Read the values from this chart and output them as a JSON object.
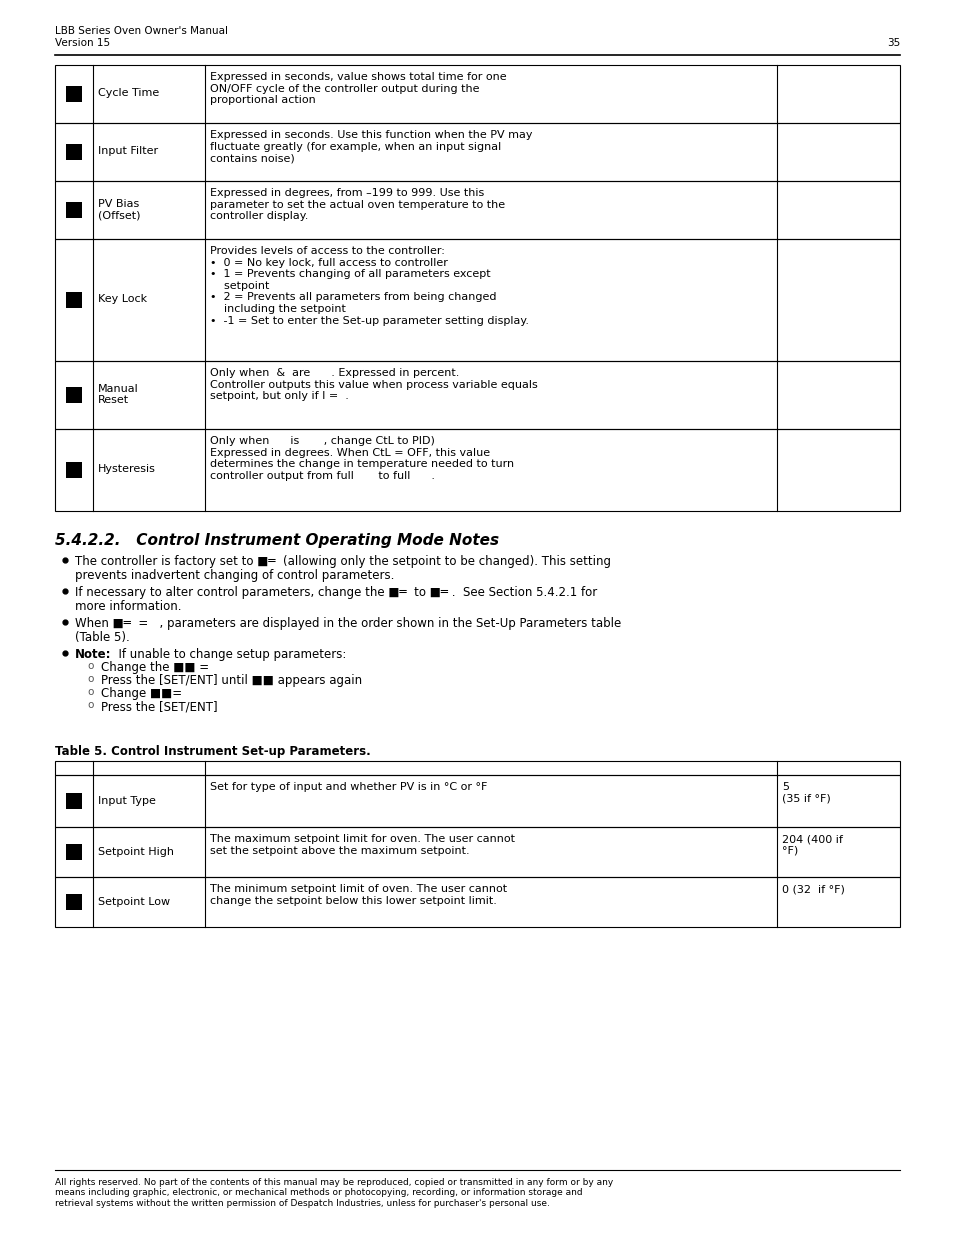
{
  "page_header_line1": "LBB Series Oven Owner's Manual",
  "page_header_line2": "Version 15",
  "page_number": "35",
  "top_table_rows": [
    {
      "label": "Cycle Time",
      "description": "Expressed in seconds, value shows total time for one\nON/OFF cycle of the controller output during the\nproportional action",
      "value": ""
    },
    {
      "label": "Input Filter",
      "description": "Expressed in seconds. Use this function when the PV may\nfluctuate greatly (for example, when an input signal\ncontains noise)",
      "value": ""
    },
    {
      "label": "PV Bias\n(Offset)",
      "description": "Expressed in degrees, from –199 to 999. Use this\nparameter to set the actual oven temperature to the\ncontroller display.",
      "value": ""
    },
    {
      "label": "Key Lock",
      "description": "Provides levels of access to the controller:\n•  0 = No key lock, full access to controller\n•  1 = Prevents changing of all parameters except\n    setpoint\n•  2 = Prevents all parameters from being changed\n    including the setpoint\n•  -1 = Set to enter the Set-up parameter setting display.",
      "value": ""
    },
    {
      "label": "Manual\nReset",
      "description": "Only when  &  are      . Expressed in percent.\nController outputs this value when process variable equals\nsetpoint, but only if I =  .",
      "value": ""
    },
    {
      "label": "Hysteresis",
      "description": "Only when      is       , change CtL to PID)\nExpressed in degrees. When CtL = OFF, this value\ndetermines the change in temperature needed to turn\ncontroller output from full       to full      .",
      "value": ""
    }
  ],
  "section_title": "5.4.2.2.   Control Instrument Operating Mode Notes",
  "table5_title": "Table 5. Control Instrument Set-up Parameters.",
  "table5_rows": [
    {
      "label": "Input Type",
      "description": "Set for type of input and whether PV is in °C or °F",
      "value": "5\n(35 if °F)"
    },
    {
      "label": "Setpoint High",
      "description": "The maximum setpoint limit for oven. The user cannot\nset the setpoint above the maximum setpoint.",
      "value": "204 (400 if\n°F)"
    },
    {
      "label": "Setpoint Low",
      "description": "The minimum setpoint limit of oven. The user cannot\nchange the setpoint below this lower setpoint limit.",
      "value": "0 (32  if °F)"
    }
  ],
  "footer": "All rights reserved. No part of the contents of this manual may be reproduced, copied or transmitted in any form or by any\nmeans including graphic, electronic, or mechanical methods or photocopying, recording, or information storage and\nretrieval systems without the written permission of Despatch Industries, unless for purchaser's personal use.",
  "bg_color": "#ffffff"
}
